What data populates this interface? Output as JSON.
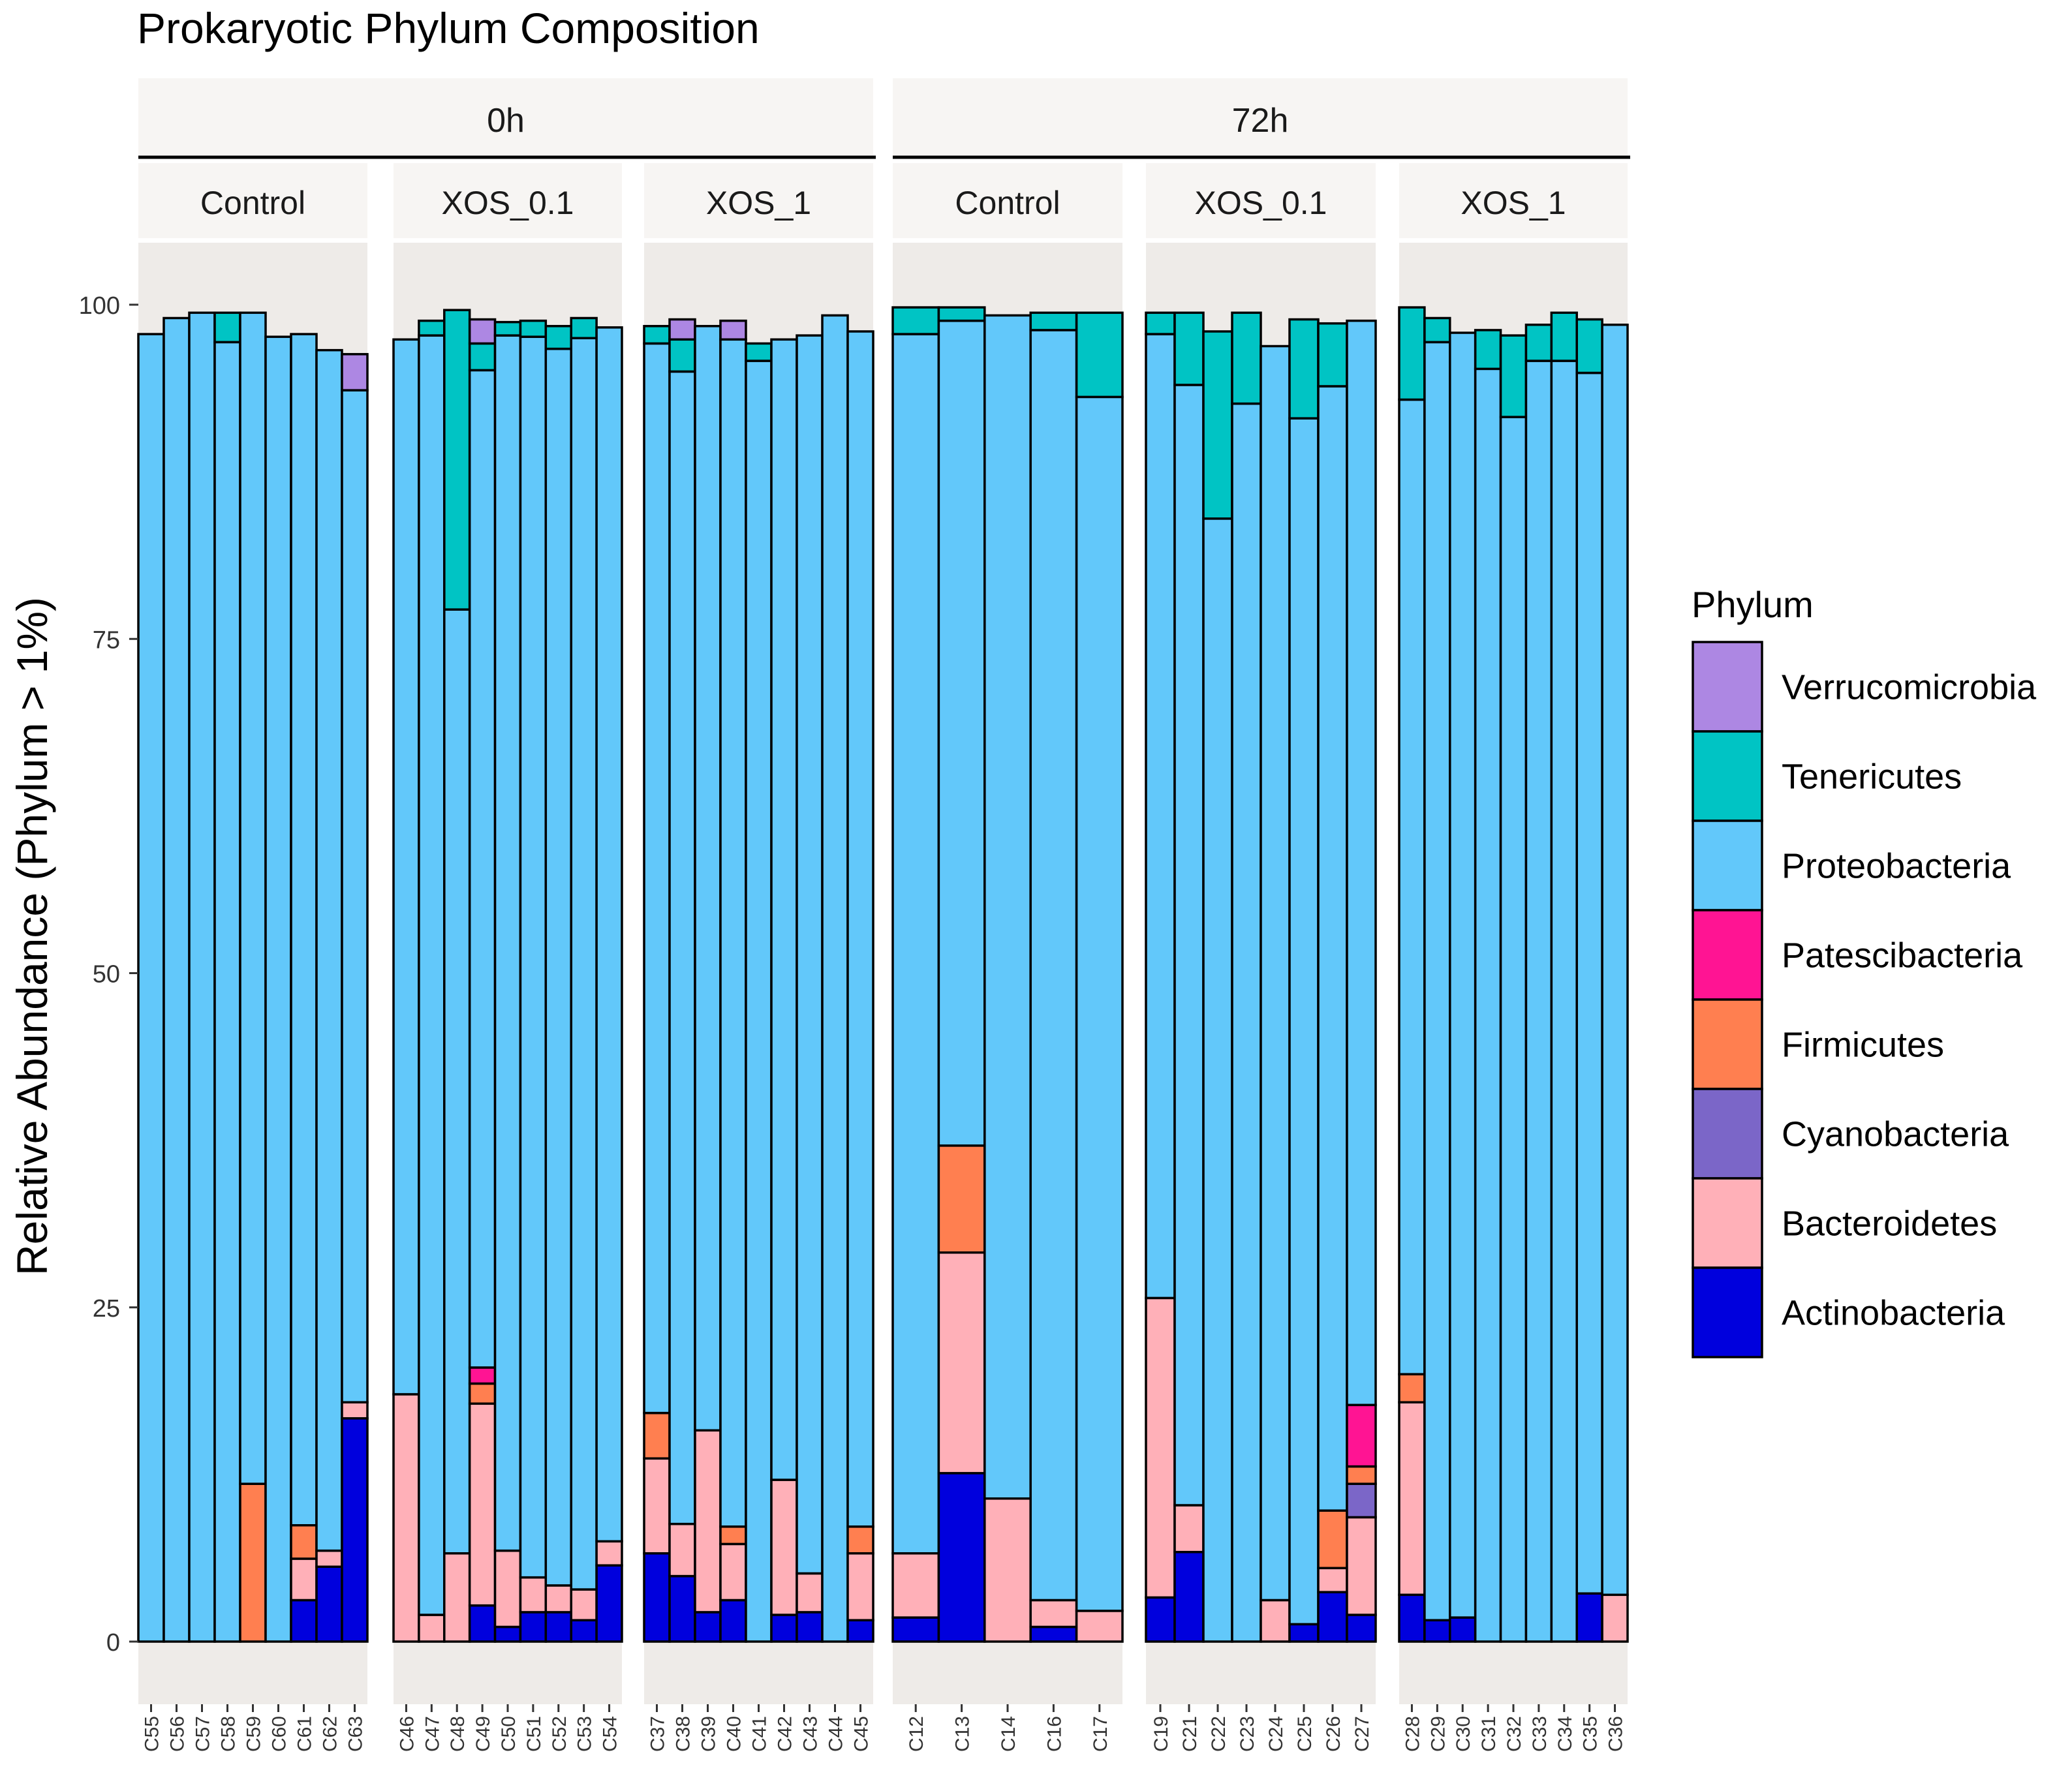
{
  "chart_data": {
    "type": "bar",
    "stacked": true,
    "title": "Prokaryotic Phylum Composition",
    "ylabel": "Relative Abundance (Phylum > 1%)",
    "xlabel": "",
    "ylim": [
      0,
      100
    ],
    "yticks": [
      0,
      25,
      50,
      75,
      100
    ],
    "grid": false,
    "legend": {
      "title": "Phylum",
      "position": "right",
      "entries": [
        "Verrucomicrobia",
        "Tenericutes",
        "Proteobacteria",
        "Patescibacteria",
        "Firmicutes",
        "Cyanobacteria",
        "Bacteroidetes",
        "Actinobacteria"
      ]
    },
    "colors": {
      "Verrucomicrobia": "#AD87E3",
      "Tenericutes": "#00C4C4",
      "Proteobacteria": "#62C8FA",
      "Patescibacteria": "#FF1493",
      "Firmicutes": "#FF7F50",
      "Cyanobacteria": "#7B66C8",
      "Bacteroidetes": "#FFB0B8",
      "Actinobacteria": "#0000DD"
    },
    "stack_order": [
      "Actinobacteria",
      "Bacteroidetes",
      "Cyanobacteria",
      "Firmicutes",
      "Patescibacteria",
      "Proteobacteria",
      "Tenericutes",
      "Verrucomicrobia"
    ],
    "time_groups": [
      "0h",
      "72h"
    ],
    "facets": [
      {
        "time": "0h",
        "treatment": "Control",
        "samples": [
          {
            "id": "C55",
            "values": {
              "Proteobacteria": 97.8
            }
          },
          {
            "id": "C56",
            "values": {
              "Proteobacteria": 99.0
            }
          },
          {
            "id": "C57",
            "values": {
              "Proteobacteria": 99.4
            }
          },
          {
            "id": "C58",
            "values": {
              "Proteobacteria": 97.2,
              "Tenericutes": 2.2
            }
          },
          {
            "id": "C59",
            "values": {
              "Firmicutes": 11.8,
              "Proteobacteria": 87.6
            }
          },
          {
            "id": "C60",
            "values": {
              "Proteobacteria": 97.6
            }
          },
          {
            "id": "C61",
            "values": {
              "Actinobacteria": 3.1,
              "Bacteroidetes": 3.1,
              "Firmicutes": 2.5,
              "Proteobacteria": 89.1
            }
          },
          {
            "id": "C62",
            "values": {
              "Actinobacteria": 5.6,
              "Bacteroidetes": 1.2,
              "Proteobacteria": 89.8
            }
          },
          {
            "id": "C63",
            "values": {
              "Actinobacteria": 16.7,
              "Bacteroidetes": 1.2,
              "Proteobacteria": 75.7,
              "Verrucomicrobia": 2.7
            }
          }
        ]
      },
      {
        "time": "0h",
        "treatment": "XOS_0.1",
        "samples": [
          {
            "id": "C46",
            "values": {
              "Bacteroidetes": 18.5,
              "Proteobacteria": 78.9
            }
          },
          {
            "id": "C47",
            "values": {
              "Bacteroidetes": 2.0,
              "Proteobacteria": 95.7,
              "Tenericutes": 1.1
            }
          },
          {
            "id": "C48",
            "values": {
              "Bacteroidetes": 6.6,
              "Proteobacteria": 70.6,
              "Tenericutes": 22.4
            }
          },
          {
            "id": "C49",
            "values": {
              "Actinobacteria": 2.7,
              "Bacteroidetes": 15.1,
              "Firmicutes": 1.5,
              "Patescibacteria": 1.2,
              "Proteobacteria": 74.6,
              "Tenericutes": 2.0,
              "Verrucomicrobia": 1.8
            }
          },
          {
            "id": "C50",
            "values": {
              "Actinobacteria": 1.1,
              "Bacteroidetes": 5.7,
              "Proteobacteria": 90.9,
              "Tenericutes": 1.0
            }
          },
          {
            "id": "C51",
            "values": {
              "Actinobacteria": 2.2,
              "Bacteroidetes": 2.6,
              "Proteobacteria": 92.8,
              "Tenericutes": 1.2
            }
          },
          {
            "id": "C52",
            "values": {
              "Actinobacteria": 2.2,
              "Bacteroidetes": 2.0,
              "Proteobacteria": 92.5,
              "Tenericutes": 1.7
            }
          },
          {
            "id": "C53",
            "values": {
              "Actinobacteria": 1.6,
              "Bacteroidetes": 2.3,
              "Proteobacteria": 93.6,
              "Tenericutes": 1.5
            }
          },
          {
            "id": "C54",
            "values": {
              "Actinobacteria": 5.7,
              "Bacteroidetes": 1.8,
              "Proteobacteria": 90.8
            }
          }
        ]
      },
      {
        "time": "0h",
        "treatment": "XOS_1",
        "samples": [
          {
            "id": "C37",
            "values": {
              "Actinobacteria": 6.6,
              "Bacteroidetes": 7.1,
              "Firmicutes": 3.4,
              "Proteobacteria": 80.0,
              "Tenericutes": 1.3
            }
          },
          {
            "id": "C38",
            "values": {
              "Actinobacteria": 4.9,
              "Bacteroidetes": 3.9,
              "Proteobacteria": 86.2,
              "Tenericutes": 2.4,
              "Verrucomicrobia": 1.5
            }
          },
          {
            "id": "C39",
            "values": {
              "Actinobacteria": 2.2,
              "Bacteroidetes": 13.6,
              "Proteobacteria": 82.6
            }
          },
          {
            "id": "C40",
            "values": {
              "Actinobacteria": 3.1,
              "Bacteroidetes": 4.2,
              "Firmicutes": 1.3,
              "Proteobacteria": 88.8,
              "Verrucomicrobia": 1.4
            }
          },
          {
            "id": "C41",
            "values": {
              "Proteobacteria": 95.8,
              "Tenericutes": 1.3
            }
          },
          {
            "id": "C42",
            "values": {
              "Actinobacteria": 2.0,
              "Bacteroidetes": 10.1,
              "Proteobacteria": 85.3
            }
          },
          {
            "id": "C43",
            "values": {
              "Actinobacteria": 2.2,
              "Bacteroidetes": 2.9,
              "Proteobacteria": 92.6
            }
          },
          {
            "id": "C44",
            "values": {
              "Proteobacteria": 99.2
            }
          },
          {
            "id": "C45",
            "values": {
              "Actinobacteria": 1.6,
              "Bacteroidetes": 5.0,
              "Firmicutes": 2.0,
              "Proteobacteria": 89.4
            }
          }
        ]
      },
      {
        "time": "72h",
        "treatment": "Control",
        "samples": [
          {
            "id": "C12",
            "values": {
              "Actinobacteria": 1.8,
              "Bacteroidetes": 4.8,
              "Proteobacteria": 91.2,
              "Tenericutes": 2.0
            }
          },
          {
            "id": "C13",
            "values": {
              "Actinobacteria": 12.6,
              "Bacteroidetes": 16.5,
              "Firmicutes": 8.0,
              "Proteobacteria": 61.7,
              "Tenericutes": 1.0
            }
          },
          {
            "id": "C14",
            "values": {
              "Bacteroidetes": 10.7,
              "Proteobacteria": 88.5
            }
          },
          {
            "id": "C16",
            "values": {
              "Actinobacteria": 1.1,
              "Bacteroidetes": 2.0,
              "Proteobacteria": 95.0,
              "Tenericutes": 1.3
            }
          },
          {
            "id": "C17",
            "values": {
              "Bacteroidetes": 2.3,
              "Proteobacteria": 90.8,
              "Tenericutes": 6.3
            }
          }
        ]
      },
      {
        "time": "72h",
        "treatment": "XOS_0.1",
        "samples": [
          {
            "id": "C19",
            "values": {
              "Actinobacteria": 3.3,
              "Bacteroidetes": 22.4,
              "Proteobacteria": 72.1,
              "Tenericutes": 1.6
            }
          },
          {
            "id": "C21",
            "values": {
              "Actinobacteria": 6.7,
              "Bacteroidetes": 3.5,
              "Proteobacteria": 83.8,
              "Tenericutes": 5.4
            }
          },
          {
            "id": "C22",
            "values": {
              "Proteobacteria": 84.0,
              "Tenericutes": 14.0
            }
          },
          {
            "id": "C23",
            "values": {
              "Proteobacteria": 92.6,
              "Tenericutes": 6.8
            }
          },
          {
            "id": "C24",
            "values": {
              "Bacteroidetes": 3.1,
              "Proteobacteria": 93.8
            }
          },
          {
            "id": "C25",
            "values": {
              "Actinobacteria": 1.3,
              "Proteobacteria": 90.2,
              "Tenericutes": 7.4
            }
          },
          {
            "id": "C26",
            "values": {
              "Actinobacteria": 3.7,
              "Bacteroidetes": 1.8,
              "Firmicutes": 4.3,
              "Proteobacteria": 84.1,
              "Tenericutes": 4.7
            }
          },
          {
            "id": "C27",
            "values": {
              "Actinobacteria": 2.0,
              "Bacteroidetes": 7.3,
              "Cyanobacteria": 2.5,
              "Firmicutes": 1.3,
              "Patescibacteria": 4.6,
              "Proteobacteria": 81.1
            }
          }
        ]
      },
      {
        "time": "72h",
        "treatment": "XOS_1",
        "samples": [
          {
            "id": "C28",
            "values": {
              "Actinobacteria": 3.5,
              "Bacteroidetes": 14.4,
              "Firmicutes": 2.1,
              "Proteobacteria": 72.9,
              "Tenericutes": 6.9
            }
          },
          {
            "id": "C29",
            "values": {
              "Actinobacteria": 1.6,
              "Proteobacteria": 95.6,
              "Tenericutes": 1.8
            }
          },
          {
            "id": "C30",
            "values": {
              "Actinobacteria": 1.8,
              "Proteobacteria": 96.1
            }
          },
          {
            "id": "C31",
            "values": {
              "Proteobacteria": 95.2,
              "Tenericutes": 2.9
            }
          },
          {
            "id": "C32",
            "values": {
              "Proteobacteria": 91.6,
              "Tenericutes": 6.1
            }
          },
          {
            "id": "C33",
            "values": {
              "Proteobacteria": 95.8,
              "Tenericutes": 2.7
            }
          },
          {
            "id": "C34",
            "values": {
              "Proteobacteria": 95.8,
              "Tenericutes": 3.6
            }
          },
          {
            "id": "C35",
            "values": {
              "Actinobacteria": 3.6,
              "Proteobacteria": 91.3,
              "Tenericutes": 4.0
            }
          },
          {
            "id": "C36",
            "values": {
              "Bacteroidetes": 3.5,
              "Proteobacteria": 95.0
            }
          }
        ]
      }
    ]
  }
}
